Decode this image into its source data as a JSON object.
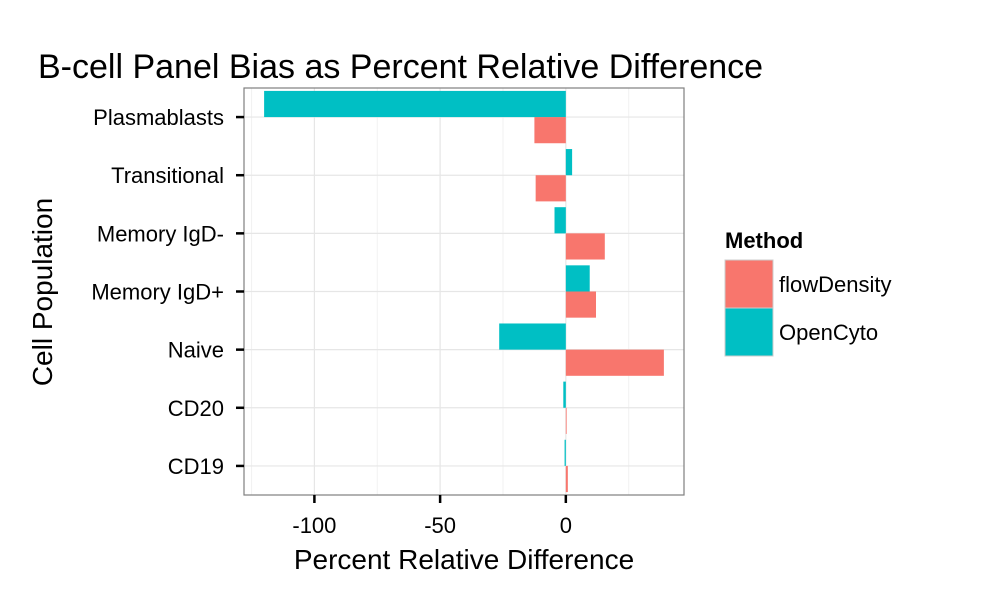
{
  "chart_data": {
    "type": "bar",
    "orientation": "horizontal",
    "title": "B-cell Panel Bias as Percent Relative Difference",
    "xlabel": "Percent Relative Difference",
    "ylabel": "Cell Population",
    "categories": [
      "Plasmablasts",
      "Transitional",
      "Memory IgD-",
      "Memory IgD+",
      "Naive",
      "CD20",
      "CD19"
    ],
    "xlim": [
      -128,
      47
    ],
    "xticks": [
      -100,
      -50,
      0
    ],
    "xtick_labels": [
      "-100",
      "-50",
      "0"
    ],
    "grid": true,
    "legend": {
      "title": "Method",
      "position": "right"
    },
    "series": [
      {
        "name": "flowDensity",
        "color": "#F8766D",
        "values": [
          -12.5,
          -12,
          15.5,
          12,
          39,
          0.3,
          0.8
        ]
      },
      {
        "name": "OpenCyto",
        "color": "#00BFC4",
        "values": [
          -120,
          2.5,
          -4.5,
          9.5,
          -26.5,
          -1,
          -0.5
        ]
      }
    ]
  }
}
